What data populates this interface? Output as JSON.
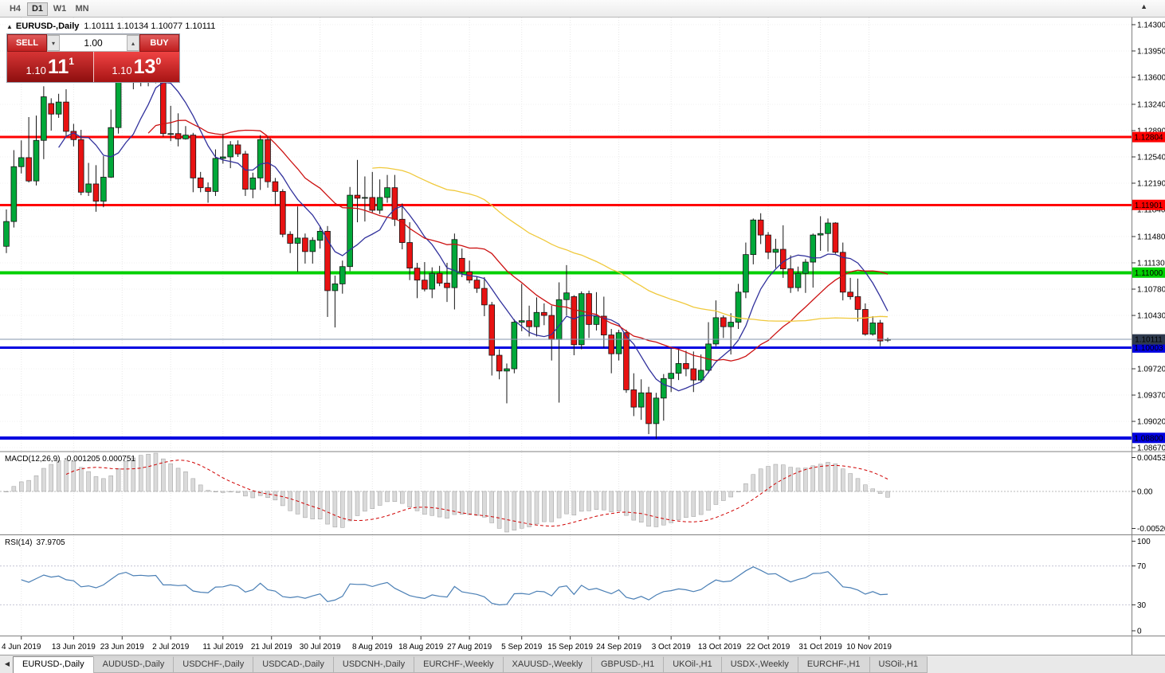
{
  "icons": {
    "one_click_toggle": "▲",
    "volume_down": "▾",
    "volume_up": "▴",
    "scroll_up": "▲",
    "tab_scroll_left": "◀"
  },
  "toolbar": {
    "timeframes": [
      "H4",
      "D1",
      "W1",
      "MN"
    ],
    "active": "D1"
  },
  "chart": {
    "title_symbol": "EURUSD-,Daily",
    "title_ohlc": "1.10111 1.10134 1.10077 1.10111",
    "trade_panel": {
      "sell_label": "SELL",
      "buy_label": "BUY",
      "volume": "1.00",
      "sell_price_big": "1.10",
      "sell_price_pips": "11",
      "sell_price_pt": "1",
      "buy_price_big": "1.10",
      "buy_price_pips": "13",
      "buy_price_pt": "0"
    },
    "price_axis_ticks": [
      "1.14300",
      "1.13950",
      "1.13600",
      "1.13240",
      "1.12890",
      "1.12540",
      "1.12190",
      "1.11840",
      "1.11480",
      "1.11130",
      "1.10780",
      "1.10430",
      "1.09720",
      "1.09370",
      "1.09020",
      "1.08670"
    ],
    "hlines": [
      {
        "price": 1.12804,
        "label": "1.12804",
        "color": "#ff0000",
        "text_color": "#ffffff",
        "width": 3
      },
      {
        "price": 1.11901,
        "label": "1.11901",
        "color": "#ff0000",
        "text_color": "#ffffff",
        "width": 3
      },
      {
        "price": 1.11,
        "label": "1.11000",
        "color": "#00d000",
        "text_color": "#000000",
        "width": 4
      },
      {
        "price": 1.10003,
        "label": "1.10003",
        "color": "#0000e0",
        "text_color": "#ffffff",
        "width": 3
      },
      {
        "price": 1.088,
        "label": "1.08800",
        "color": "#0000e0",
        "text_color": "#ffffff",
        "width": 4
      }
    ],
    "bid": {
      "price": 1.10111,
      "label": "1.10111",
      "line_color": "#8494ae",
      "tag_bg": "#2e3a4e",
      "tag_text": "#ffffff"
    },
    "moving_averages": [
      {
        "period": 8,
        "color": "#31319c"
      },
      {
        "period": 20,
        "color": "#cc1111"
      },
      {
        "period": 50,
        "color": "#f0c93c"
      }
    ],
    "date_ticks": [
      "4 Jun 2019",
      "13 Jun 2019",
      "23 Jun 2019",
      "2 Jul 2019",
      "11 Jul 2019",
      "21 Jul 2019",
      "30 Jul 2019",
      "8 Aug 2019",
      "18 Aug 2019",
      "27 Aug 2019",
      "5 Sep 2019",
      "15 Sep 2019",
      "24 Sep 2019",
      "3 Oct 2019",
      "13 Oct 2019",
      "22 Oct 2019",
      "31 Oct 2019",
      "10 Nov 2019"
    ]
  },
  "indicators": {
    "macd": {
      "label": "MACD(12,26,9)",
      "values": "-0.001205 0.000751",
      "axis_max": "0.004536",
      "axis_zero": "0.00",
      "axis_min": "-0.005205",
      "fast": 12,
      "slow": 26,
      "signal": 9
    },
    "rsi": {
      "label": "RSI(14)",
      "value": "37.9705",
      "period": 14,
      "axis": [
        "100",
        "70",
        "30",
        "0"
      ],
      "levels": [
        70,
        30
      ]
    }
  },
  "tabs": [
    {
      "label": "EURUSD-,Daily",
      "active": true
    },
    {
      "label": "AUDUSD-,Daily",
      "active": false
    },
    {
      "label": "USDCHF-,Daily",
      "active": false
    },
    {
      "label": "USDCAD-,Daily",
      "active": false
    },
    {
      "label": "USDCNH-,Daily",
      "active": false
    },
    {
      "label": "EURCHF-,Weekly",
      "active": false
    },
    {
      "label": "XAUUSD-,Weekly",
      "active": false
    },
    {
      "label": "GBPUSD-,H1",
      "active": false
    },
    {
      "label": "UKOil-,H1",
      "active": false
    },
    {
      "label": "USDX-,Weekly",
      "active": false
    },
    {
      "label": "EURCHF-,H1",
      "active": false
    },
    {
      "label": "USOil-,H1",
      "active": false
    }
  ],
  "colors": {
    "up": "#00a839",
    "down": "#e81212",
    "outline": "#141414",
    "grid": "#e7e7e7",
    "separator": "#808080",
    "macd_hist_fill": "#dadada",
    "macd_hist_stroke": "#9c9c9c",
    "macd_signal": "#d00000",
    "rsi_line": "#4a7fb5",
    "level_line": "#c4c4d4"
  },
  "chart_data": {
    "type": "candlestick",
    "symbol": "EURUSD-",
    "timeframe": "Daily",
    "ylim": [
      1.08639,
      1.14395
    ],
    "ohlc": [
      [
        "2019-05-31",
        1.1135,
        1.1184,
        1.1126,
        1.1168
      ],
      [
        "2019-06-03",
        1.1168,
        1.1263,
        1.116,
        1.1241
      ],
      [
        "2019-06-04",
        1.1241,
        1.1276,
        1.1232,
        1.1253
      ],
      [
        "2019-06-05",
        1.1253,
        1.1307,
        1.122,
        1.1222
      ],
      [
        "2019-06-06",
        1.1222,
        1.1309,
        1.1216,
        1.1276
      ],
      [
        "2019-06-07",
        1.1276,
        1.1348,
        1.1251,
        1.1334
      ],
      [
        "2019-06-10",
        1.1325,
        1.1332,
        1.1289,
        1.1311
      ],
      [
        "2019-06-11",
        1.1311,
        1.1338,
        1.1306,
        1.1327
      ],
      [
        "2019-06-12",
        1.1327,
        1.1344,
        1.1282,
        1.1288
      ],
      [
        "2019-06-13",
        1.1288,
        1.1298,
        1.1268,
        1.1277
      ],
      [
        "2019-06-14",
        1.1277,
        1.129,
        1.1203,
        1.1207
      ],
      [
        "2019-06-17",
        1.1207,
        1.1246,
        1.1202,
        1.1218
      ],
      [
        "2019-06-18",
        1.1218,
        1.1243,
        1.1181,
        1.1195
      ],
      [
        "2019-06-19",
        1.1195,
        1.1255,
        1.1187,
        1.1227
      ],
      [
        "2019-06-20",
        1.1227,
        1.1317,
        1.1226,
        1.1293
      ],
      [
        "2019-06-21",
        1.1293,
        1.1378,
        1.1285,
        1.1369
      ],
      [
        "2019-06-24",
        1.1369,
        1.1403,
        1.1362,
        1.1399
      ],
      [
        "2019-06-25",
        1.1399,
        1.1405,
        1.1344,
        1.1366
      ],
      [
        "2019-06-26",
        1.1366,
        1.1391,
        1.1348,
        1.1373
      ],
      [
        "2019-06-27",
        1.1373,
        1.138,
        1.1348,
        1.1367
      ],
      [
        "2019-06-28",
        1.1367,
        1.1391,
        1.1352,
        1.1373
      ],
      [
        "2019-07-01",
        1.1373,
        1.1375,
        1.1281,
        1.1285
      ],
      [
        "2019-07-02",
        1.1285,
        1.1322,
        1.1275,
        1.1285
      ],
      [
        "2019-07-03",
        1.1285,
        1.1312,
        1.1268,
        1.1278
      ],
      [
        "2019-07-04",
        1.1278,
        1.1295,
        1.1277,
        1.1283
      ],
      [
        "2019-07-05",
        1.1283,
        1.1286,
        1.1207,
        1.1226
      ],
      [
        "2019-07-08",
        1.1226,
        1.1234,
        1.1207,
        1.1213
      ],
      [
        "2019-07-09",
        1.1213,
        1.122,
        1.1193,
        1.1208
      ],
      [
        "2019-07-10",
        1.1208,
        1.1264,
        1.1202,
        1.1252
      ],
      [
        "2019-07-11",
        1.1252,
        1.1285,
        1.1245,
        1.1254
      ],
      [
        "2019-07-12",
        1.1254,
        1.1275,
        1.1239,
        1.127
      ],
      [
        "2019-07-15",
        1.127,
        1.1276,
        1.1254,
        1.1258
      ],
      [
        "2019-07-16",
        1.1258,
        1.1262,
        1.1202,
        1.1211
      ],
      [
        "2019-07-17",
        1.1211,
        1.1233,
        1.1199,
        1.1226
      ],
      [
        "2019-07-18",
        1.1226,
        1.1283,
        1.121,
        1.1277
      ],
      [
        "2019-07-19",
        1.1277,
        1.1282,
        1.1213,
        1.1221
      ],
      [
        "2019-07-22",
        1.1221,
        1.1226,
        1.119,
        1.1208
      ],
      [
        "2019-07-23",
        1.1208,
        1.1211,
        1.1147,
        1.1151
      ],
      [
        "2019-07-24",
        1.1151,
        1.1155,
        1.1126,
        1.1139
      ],
      [
        "2019-07-25",
        1.1139,
        1.1188,
        1.1101,
        1.1146
      ],
      [
        "2019-07-26",
        1.1146,
        1.1152,
        1.1112,
        1.1128
      ],
      [
        "2019-07-29",
        1.1128,
        1.1147,
        1.1112,
        1.1143
      ],
      [
        "2019-07-30",
        1.1143,
        1.1162,
        1.1132,
        1.1155
      ],
      [
        "2019-07-31",
        1.1155,
        1.1162,
        1.1041,
        1.1076
      ],
      [
        "2019-08-01",
        1.1076,
        1.1096,
        1.1027,
        1.1085
      ],
      [
        "2019-08-02",
        1.1085,
        1.1116,
        1.1072,
        1.1108
      ],
      [
        "2019-08-05",
        1.1108,
        1.1214,
        1.1102,
        1.1203
      ],
      [
        "2019-08-06",
        1.1203,
        1.125,
        1.1167,
        1.1199
      ],
      [
        "2019-08-07",
        1.1199,
        1.1228,
        1.1168,
        1.12
      ],
      [
        "2019-08-08",
        1.12,
        1.1234,
        1.118,
        1.1183
      ],
      [
        "2019-08-09",
        1.1183,
        1.1224,
        1.1178,
        1.12
      ],
      [
        "2019-08-12",
        1.12,
        1.123,
        1.1193,
        1.1213
      ],
      [
        "2019-08-13",
        1.1213,
        1.123,
        1.1162,
        1.1171
      ],
      [
        "2019-08-14",
        1.1171,
        1.1192,
        1.1131,
        1.114
      ],
      [
        "2019-08-15",
        1.114,
        1.1167,
        1.109,
        1.1106
      ],
      [
        "2019-08-16",
        1.1106,
        1.1113,
        1.1066,
        1.109
      ],
      [
        "2019-08-19",
        1.109,
        1.1114,
        1.1075,
        1.1078
      ],
      [
        "2019-08-20",
        1.1078,
        1.1107,
        1.1066,
        1.1099
      ],
      [
        "2019-08-21",
        1.1099,
        1.1109,
        1.1082,
        1.1086
      ],
      [
        "2019-08-22",
        1.1086,
        1.1113,
        1.1061,
        1.108
      ],
      [
        "2019-08-23",
        1.108,
        1.1152,
        1.1051,
        1.1144
      ],
      [
        "2019-08-26",
        1.1119,
        1.1132,
        1.1094,
        1.1101
      ],
      [
        "2019-08-27",
        1.1101,
        1.1116,
        1.1086,
        1.109
      ],
      [
        "2019-08-28",
        1.109,
        1.1095,
        1.1073,
        1.1079
      ],
      [
        "2019-08-29",
        1.1079,
        1.1094,
        1.1042,
        1.1057
      ],
      [
        "2019-08-30",
        1.1057,
        1.1061,
        1.0963,
        1.099
      ],
      [
        "2019-09-02",
        1.099,
        1.0998,
        1.0958,
        1.0969
      ],
      [
        "2019-09-03",
        1.0969,
        1.0979,
        1.0926,
        1.0972
      ],
      [
        "2019-09-04",
        1.0972,
        1.1038,
        1.0966,
        1.1034
      ],
      [
        "2019-09-05",
        1.1034,
        1.1085,
        1.1022,
        1.1036
      ],
      [
        "2019-09-06",
        1.1036,
        1.1056,
        1.1015,
        1.1028
      ],
      [
        "2019-09-09",
        1.1028,
        1.1067,
        1.1015,
        1.1047
      ],
      [
        "2019-09-10",
        1.1047,
        1.1059,
        1.103,
        1.1043
      ],
      [
        "2019-09-11",
        1.1043,
        1.1056,
        1.0983,
        1.1011
      ],
      [
        "2019-09-12",
        1.1011,
        1.1087,
        1.0927,
        1.1064
      ],
      [
        "2019-09-13",
        1.1064,
        1.111,
        1.1043,
        1.1073
      ],
      [
        "2019-09-16",
        1.1068,
        1.107,
        1.099,
        1.1004
      ],
      [
        "2019-09-17",
        1.1004,
        1.1075,
        1.0998,
        1.1072
      ],
      [
        "2019-09-18",
        1.1072,
        1.1076,
        1.1013,
        1.1031
      ],
      [
        "2019-09-19",
        1.1031,
        1.1074,
        1.1023,
        1.1042
      ],
      [
        "2019-09-20",
        1.1042,
        1.1068,
        1.1,
        1.1017
      ],
      [
        "2019-09-23",
        1.1017,
        1.1025,
        1.0966,
        1.0992
      ],
      [
        "2019-09-24",
        1.0992,
        1.1024,
        1.0983,
        1.102
      ],
      [
        "2019-09-25",
        1.102,
        1.1024,
        1.094,
        1.0944
      ],
      [
        "2019-09-26",
        1.0944,
        1.0966,
        1.0909,
        1.0921
      ],
      [
        "2019-09-27",
        1.0921,
        1.0958,
        1.0904,
        1.094
      ],
      [
        "2019-09-30",
        1.094,
        1.0948,
        1.0885,
        1.0899
      ],
      [
        "2019-10-01",
        1.0899,
        1.094,
        1.0879,
        1.0933
      ],
      [
        "2019-10-02",
        1.0933,
        1.0965,
        1.0903,
        1.0959
      ],
      [
        "2019-10-03",
        1.0959,
        1.0999,
        1.0941,
        1.0966
      ],
      [
        "2019-10-04",
        1.0966,
        1.0999,
        1.0957,
        1.0979
      ],
      [
        "2019-10-07",
        1.0979,
        1.0996,
        1.0962,
        1.0972
      ],
      [
        "2019-10-08",
        1.0972,
        1.0995,
        1.0941,
        1.0957
      ],
      [
        "2019-10-09",
        1.0957,
        1.0991,
        1.0955,
        1.097
      ],
      [
        "2019-10-10",
        1.097,
        1.1034,
        1.0966,
        1.1005
      ],
      [
        "2019-10-11",
        1.1005,
        1.1063,
        1.1002,
        1.104
      ],
      [
        "2019-10-14",
        1.104,
        1.1043,
        1.1013,
        1.1028
      ],
      [
        "2019-10-15",
        1.1028,
        1.1046,
        1.0991,
        1.1034
      ],
      [
        "2019-10-16",
        1.1034,
        1.1085,
        1.1025,
        1.1074
      ],
      [
        "2019-10-17",
        1.1074,
        1.114,
        1.1066,
        1.1124
      ],
      [
        "2019-10-18",
        1.1124,
        1.1172,
        1.1111,
        1.117
      ],
      [
        "2019-10-21",
        1.117,
        1.1179,
        1.1138,
        1.115
      ],
      [
        "2019-10-22",
        1.115,
        1.1154,
        1.1118,
        1.1127
      ],
      [
        "2019-10-23",
        1.1127,
        1.1145,
        1.1106,
        1.1131
      ],
      [
        "2019-10-24",
        1.1131,
        1.1163,
        1.1093,
        1.1105
      ],
      [
        "2019-10-25",
        1.1105,
        1.1123,
        1.1073,
        1.108
      ],
      [
        "2019-10-28",
        1.108,
        1.1108,
        1.1075,
        1.1099
      ],
      [
        "2019-10-29",
        1.1099,
        1.1118,
        1.1073,
        1.1114
      ],
      [
        "2019-10-30",
        1.1114,
        1.1152,
        1.108,
        1.115
      ],
      [
        "2019-10-31",
        1.115,
        1.1175,
        1.1129,
        1.1152
      ],
      [
        "2019-11-01",
        1.1152,
        1.1172,
        1.1128,
        1.1166
      ],
      [
        "2019-11-04",
        1.1166,
        1.1167,
        1.1125,
        1.1127
      ],
      [
        "2019-11-05",
        1.1127,
        1.114,
        1.1063,
        1.1074
      ],
      [
        "2019-11-06",
        1.1074,
        1.1093,
        1.1064,
        1.1068
      ],
      [
        "2019-11-07",
        1.1068,
        1.1092,
        1.1035,
        1.1051
      ],
      [
        "2019-11-08",
        1.1051,
        1.1059,
        1.1016,
        1.1018
      ],
      [
        "2019-11-11",
        1.1018,
        1.1042,
        1.1016,
        1.1033
      ],
      [
        "2019-11-12",
        1.1033,
        1.1037,
        1.1002,
        1.1009
      ],
      [
        "2019-11-13",
        1.10111,
        1.10134,
        1.10077,
        1.10111
      ]
    ]
  }
}
